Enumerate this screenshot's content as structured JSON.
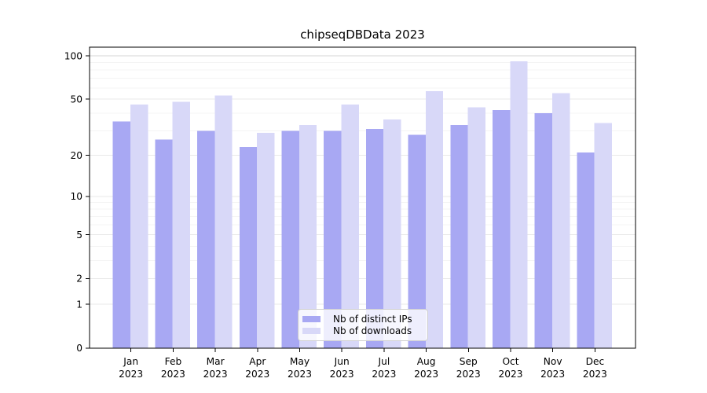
{
  "chart_data": {
    "type": "bar",
    "title": "chipseqDBData 2023",
    "categories": [
      {
        "month": "Jan",
        "year": "2023"
      },
      {
        "month": "Feb",
        "year": "2023"
      },
      {
        "month": "Mar",
        "year": "2023"
      },
      {
        "month": "Apr",
        "year": "2023"
      },
      {
        "month": "May",
        "year": "2023"
      },
      {
        "month": "Jun",
        "year": "2023"
      },
      {
        "month": "Jul",
        "year": "2023"
      },
      {
        "month": "Aug",
        "year": "2023"
      },
      {
        "month": "Sep",
        "year": "2023"
      },
      {
        "month": "Oct",
        "year": "2023"
      },
      {
        "month": "Nov",
        "year": "2023"
      },
      {
        "month": "Dec",
        "year": "2023"
      }
    ],
    "series": [
      {
        "name": "Nb of distinct IPs",
        "color": "#a8a8f3",
        "values": [
          35,
          26,
          30,
          23,
          30,
          30,
          31,
          28,
          33,
          42,
          40,
          21
        ]
      },
      {
        "name": "Nb of downloads",
        "color": "#d8d8f8",
        "values": [
          46,
          48,
          53,
          29,
          33,
          46,
          36,
          57,
          44,
          92,
          55,
          34
        ]
      }
    ],
    "xlabel": "",
    "ylabel": "",
    "yscale": "log1p",
    "yticks": [
      0,
      1,
      2,
      5,
      10,
      20,
      50,
      100
    ],
    "minor_yticks": [
      3,
      4,
      6,
      7,
      8,
      9,
      30,
      40,
      60,
      70,
      80,
      90
    ],
    "ylim": [
      0,
      115
    ],
    "grid": "horizontal",
    "legend_position": "lower center"
  },
  "colors": {
    "background": "#ffffff",
    "axis": "#000000",
    "text": "#000000",
    "grid_major": "#e8e8e8",
    "grid_minor": "#f4f4f4",
    "grid_emphasis": "#d4d4d4"
  }
}
